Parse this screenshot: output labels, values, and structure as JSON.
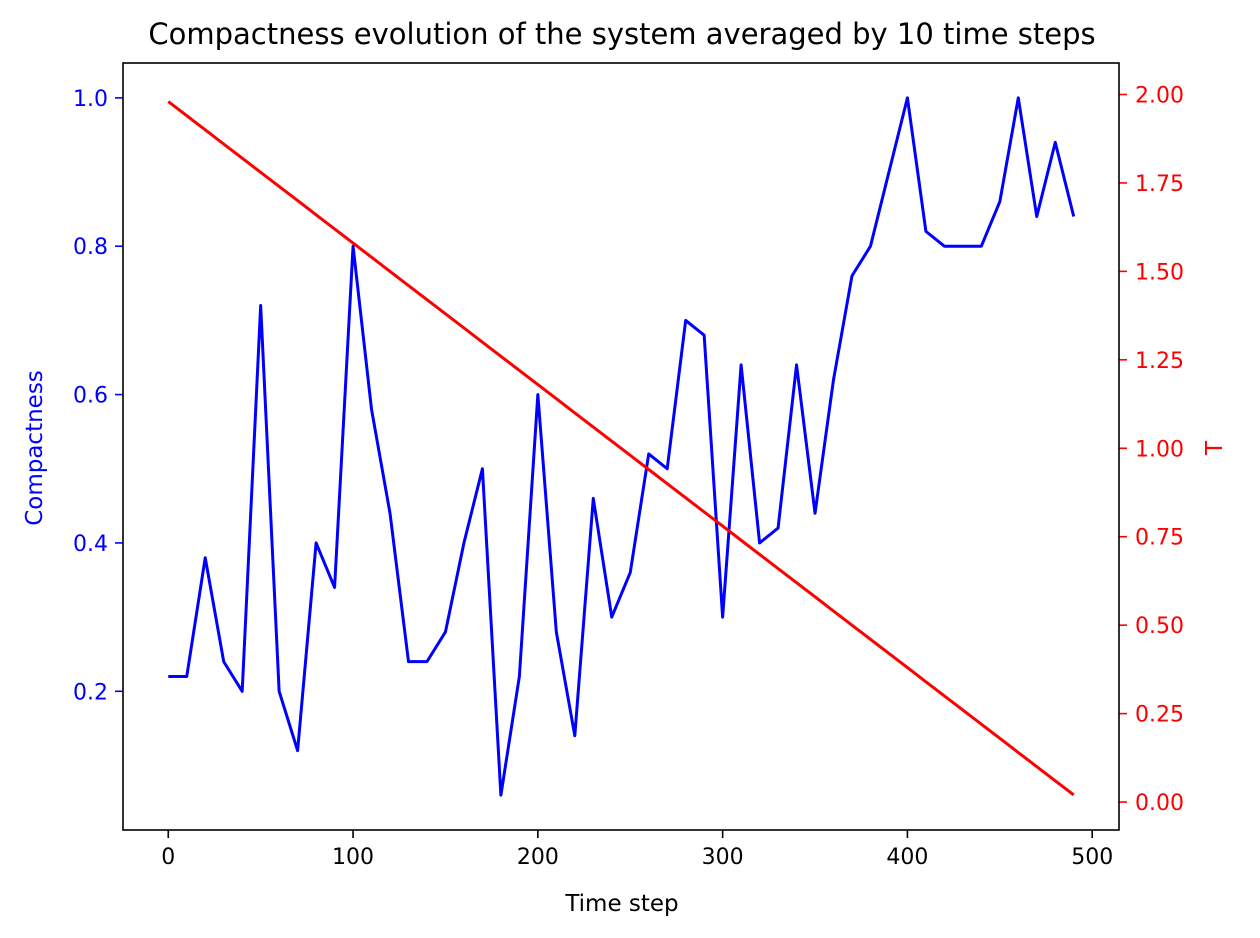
{
  "chart_data": {
    "type": "line",
    "title": "Compactness evolution of the system averaged by 10 time steps",
    "xlabel": "Time step",
    "ylabel_left": "Compactness",
    "ylabel_right": "T",
    "xlim": [
      -24.5,
      514.5
    ],
    "ylim_left": [
      0.013,
      1.047
    ],
    "ylim_right": [
      -0.079,
      2.089
    ],
    "x_ticks": [
      0,
      100,
      200,
      300,
      400,
      500
    ],
    "x_tick_labels": [
      "0",
      "100",
      "200",
      "300",
      "400",
      "500"
    ],
    "yleft_ticks": [
      0.2,
      0.4,
      0.6,
      0.8,
      1.0
    ],
    "yleft_tick_labels": [
      "0.2",
      "0.4",
      "0.6",
      "0.8",
      "1.0"
    ],
    "yright_ticks": [
      0.0,
      0.25,
      0.5,
      0.75,
      1.0,
      1.25,
      1.5,
      1.75,
      2.0
    ],
    "yright_tick_labels": [
      "0.00",
      "0.25",
      "0.50",
      "0.75",
      "1.00",
      "1.25",
      "1.50",
      "1.75",
      "2.00"
    ],
    "grid": false,
    "x": [
      0,
      10,
      20,
      30,
      40,
      50,
      60,
      70,
      80,
      90,
      100,
      110,
      120,
      130,
      140,
      150,
      160,
      170,
      180,
      190,
      200,
      210,
      220,
      230,
      240,
      250,
      260,
      270,
      280,
      290,
      300,
      310,
      320,
      330,
      340,
      350,
      360,
      370,
      380,
      390,
      400,
      410,
      420,
      430,
      440,
      450,
      460,
      470,
      480,
      490
    ],
    "series": [
      {
        "axis": "left",
        "color": "#0000ff",
        "values": [
          0.22,
          0.22,
          0.38,
          0.24,
          0.2,
          0.72,
          0.2,
          0.12,
          0.4,
          0.34,
          0.8,
          0.58,
          0.44,
          0.24,
          0.24,
          0.28,
          0.4,
          0.5,
          0.06,
          0.22,
          0.6,
          0.28,
          0.14,
          0.46,
          0.3,
          0.36,
          0.52,
          0.5,
          0.7,
          0.68,
          0.3,
          0.64,
          0.4,
          0.42,
          0.64,
          0.44,
          0.62,
          0.76,
          0.8,
          0.9,
          1.0,
          0.82,
          0.8,
          0.8,
          0.8,
          0.86,
          1.0,
          0.84,
          0.94,
          0.84
        ]
      },
      {
        "axis": "right",
        "color": "#ff0000",
        "values": [
          1.98,
          1.94,
          1.9,
          1.86,
          1.82,
          1.78,
          1.74,
          1.7,
          1.66,
          1.62,
          1.58,
          1.54,
          1.5,
          1.46,
          1.42,
          1.38,
          1.34,
          1.3,
          1.26,
          1.22,
          1.18,
          1.14,
          1.1,
          1.06,
          1.02,
          0.98,
          0.94,
          0.9,
          0.86,
          0.82,
          0.78,
          0.74,
          0.7,
          0.66,
          0.62,
          0.58,
          0.54,
          0.5,
          0.46,
          0.42,
          0.38,
          0.34,
          0.3,
          0.26,
          0.22,
          0.18,
          0.14,
          0.1,
          0.06,
          0.02
        ]
      }
    ],
    "colors": {
      "left_axis": "#0000ff",
      "right_axis": "#ff0000",
      "frame": "#000000"
    }
  }
}
